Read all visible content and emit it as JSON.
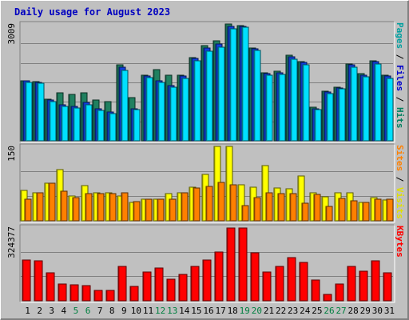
{
  "chart_data": {
    "type": "bar",
    "title": "Daily usage for August 2023",
    "days": [
      "1",
      "2",
      "3",
      "4",
      "5",
      "6",
      "7",
      "8",
      "9",
      "10",
      "11",
      "12",
      "13",
      "14",
      "15",
      "16",
      "17",
      "18",
      "19",
      "20",
      "21",
      "22",
      "23",
      "24",
      "25",
      "26",
      "27",
      "28",
      "29",
      "30",
      "31"
    ],
    "weekend_days": [
      "5",
      "6",
      "12",
      "13",
      "19",
      "20",
      "26",
      "27"
    ],
    "panels": [
      {
        "key": "hits",
        "max_label": "3009",
        "ymax": 3009,
        "side_labels": [
          {
            "text": "Pages",
            "color": "#00a0a0"
          },
          {
            "text": " / ",
            "color": "#000000"
          },
          {
            "text": "Files",
            "color": "#0000cc"
          },
          {
            "text": " / ",
            "color": "#000000"
          },
          {
            "text": "Hits",
            "color": "#008060"
          }
        ],
        "series": [
          {
            "name": "Hits",
            "color": "#208060",
            "values": [
              1550,
              1520,
              1080,
              1230,
              1190,
              1230,
              1050,
              1020,
              1950,
              1120,
              1680,
              1840,
              1680,
              1680,
              2150,
              2450,
              2580,
              3009,
              2970,
              2400,
              1750,
              1800,
              2200,
              2050,
              870,
              1280,
              1390,
              1980,
              1730,
              2070,
              1700
            ]
          },
          {
            "name": "Files",
            "color": "#1040e0",
            "values": [
              1540,
              1510,
              1060,
              930,
              880,
              980,
              820,
              740,
              1900,
              830,
              1660,
              1550,
              1430,
              1660,
              2130,
              2400,
              2500,
              2950,
              2950,
              2380,
              1730,
              1760,
              2170,
              2020,
              830,
              1250,
              1370,
              1950,
              1690,
              2050,
              1660
            ]
          },
          {
            "name": "Pages",
            "color": "#00e0ff",
            "values": [
              1510,
              1490,
              1020,
              890,
              840,
              930,
              780,
              710,
              1820,
              800,
              1620,
              1500,
              1380,
              1600,
              2060,
              2300,
              2420,
              2880,
              2920,
              2330,
              1690,
              1720,
              2110,
              1960,
              800,
              1220,
              1340,
              1900,
              1640,
              1980,
              1610
            ]
          }
        ]
      },
      {
        "key": "visits",
        "max_label": "150",
        "ymax": 150,
        "side_labels": [
          {
            "text": "Sites",
            "color": "#ff8000"
          },
          {
            "text": " / ",
            "color": "#000000"
          },
          {
            "text": "Visits",
            "color": "#e0e000"
          }
        ],
        "series": [
          {
            "name": "Visits",
            "color": "#ffff00",
            "values": [
              62,
              57,
              75,
              103,
              50,
              71,
              57,
              56,
              50,
              37,
              43,
              43,
              55,
              56,
              68,
              93,
              150,
              150,
              72,
              68,
              112,
              66,
              64,
              91,
              57,
              49,
              56,
              57,
              37,
              46,
              42
            ]
          },
          {
            "name": "Sites",
            "color": "#ff8000",
            "values": [
              43,
              57,
              75,
              60,
              46,
              55,
              55,
              55,
              57,
              38,
              43,
              43,
              44,
              56,
              66,
              70,
              77,
              72,
              31,
              47,
              57,
              55,
              55,
              36,
              53,
              29,
              45,
              40,
              37,
              43,
              43
            ]
          }
        ]
      },
      {
        "key": "kbytes",
        "max_label": "324377",
        "ymax": 324377,
        "side_labels": [
          {
            "text": "KBytes",
            "color": "#ff0000"
          }
        ],
        "series": [
          {
            "name": "KBytes",
            "color": "#ff0000",
            "values": [
              180000,
              175000,
              123000,
              73000,
              70000,
              67000,
              47000,
              45000,
              152000,
              63000,
              127000,
              145000,
              95000,
              118000,
              150000,
              180000,
              215000,
              322000,
              322000,
              210000,
              128000,
              150000,
              190000,
              168000,
              90000,
              27000,
              75000,
              152000,
              130000,
              175000,
              123000
            ]
          }
        ]
      }
    ]
  }
}
